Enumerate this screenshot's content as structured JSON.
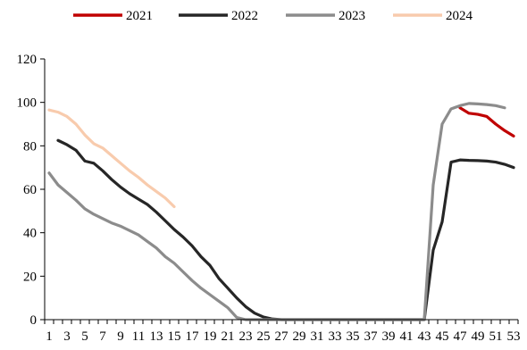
{
  "chart_data": {
    "type": "line",
    "title": "",
    "xlabel": "",
    "ylabel": "",
    "xlim": [
      1,
      53
    ],
    "ylim": [
      0,
      120
    ],
    "y_ticks": [
      0,
      20,
      40,
      60,
      80,
      100,
      120
    ],
    "x_ticks": [
      1,
      3,
      5,
      7,
      9,
      11,
      13,
      15,
      17,
      19,
      21,
      23,
      25,
      27,
      29,
      31,
      33,
      35,
      37,
      39,
      41,
      43,
      45,
      47,
      49,
      51,
      53
    ],
    "grid": false,
    "legend_position": "top",
    "series": [
      {
        "name": "2021",
        "color": "#c00000",
        "points": [
          [
            47,
            97.5
          ],
          [
            48,
            95
          ],
          [
            49,
            94.5
          ],
          [
            50,
            93.5
          ],
          [
            51,
            90
          ],
          [
            52,
            87
          ],
          [
            53,
            84.5
          ]
        ]
      },
      {
        "name": "2022",
        "color": "#262626",
        "points": [
          [
            2,
            82.5
          ],
          [
            3,
            80.5
          ],
          [
            4,
            78
          ],
          [
            5,
            73
          ],
          [
            6,
            72
          ],
          [
            7,
            68.5
          ],
          [
            8,
            64.5
          ],
          [
            9,
            61
          ],
          [
            10,
            58
          ],
          [
            11,
            55.5
          ],
          [
            12,
            53
          ],
          [
            13,
            49.5
          ],
          [
            14,
            45.5
          ],
          [
            15,
            41.5
          ],
          [
            16,
            38
          ],
          [
            17,
            34
          ],
          [
            18,
            29
          ],
          [
            19,
            25
          ],
          [
            20,
            19
          ],
          [
            21,
            14.5
          ],
          [
            22,
            10
          ],
          [
            23,
            6
          ],
          [
            24,
            3
          ],
          [
            25,
            1.2
          ],
          [
            26,
            0.3
          ],
          [
            27,
            0
          ],
          [
            43,
            0
          ],
          [
            44,
            32
          ],
          [
            45,
            45
          ],
          [
            46,
            72.5
          ],
          [
            47,
            73.5
          ],
          [
            48,
            73.3
          ],
          [
            49,
            73.2
          ],
          [
            50,
            73
          ],
          [
            51,
            72.5
          ],
          [
            52,
            71.5
          ],
          [
            53,
            70
          ]
        ]
      },
      {
        "name": "2023",
        "color": "#8c8c8c",
        "points": [
          [
            1,
            67.5
          ],
          [
            2,
            62
          ],
          [
            3,
            58.5
          ],
          [
            4,
            55
          ],
          [
            5,
            51
          ],
          [
            6,
            48.5
          ],
          [
            7,
            46.5
          ],
          [
            8,
            44.5
          ],
          [
            9,
            43
          ],
          [
            10,
            41
          ],
          [
            11,
            39
          ],
          [
            12,
            36
          ],
          [
            13,
            33
          ],
          [
            14,
            29
          ],
          [
            15,
            26
          ],
          [
            16,
            22
          ],
          [
            17,
            18
          ],
          [
            18,
            14.5
          ],
          [
            19,
            11.5
          ],
          [
            20,
            8.5
          ],
          [
            21,
            5.5
          ],
          [
            22,
            1
          ],
          [
            23,
            0
          ],
          [
            43,
            0
          ],
          [
            44,
            62
          ],
          [
            45,
            90
          ],
          [
            46,
            97
          ],
          [
            47,
            98.5
          ],
          [
            48,
            99.5
          ],
          [
            49,
            99.3
          ],
          [
            50,
            99
          ],
          [
            51,
            98.5
          ],
          [
            52,
            97.5
          ]
        ]
      },
      {
        "name": "2024",
        "color": "#f8cbad",
        "points": [
          [
            1,
            96.5
          ],
          [
            2,
            95.5
          ],
          [
            3,
            93.5
          ],
          [
            4,
            90
          ],
          [
            5,
            85
          ],
          [
            6,
            81
          ],
          [
            7,
            79
          ],
          [
            8,
            75.5
          ],
          [
            9,
            72
          ],
          [
            10,
            68.5
          ],
          [
            11,
            65.5
          ],
          [
            12,
            62
          ],
          [
            13,
            59
          ],
          [
            14,
            56
          ],
          [
            15,
            52
          ]
        ]
      }
    ]
  }
}
